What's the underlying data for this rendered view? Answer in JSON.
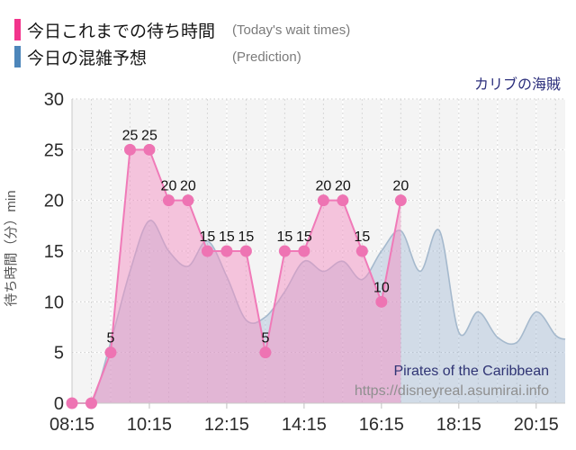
{
  "legend": {
    "items": [
      {
        "label": "今日これまでの待ち時間",
        "sublabel": "(Today's wait times)",
        "color": "#f2348c"
      },
      {
        "label": "今日の混雑予想",
        "sublabel": "(Prediction)",
        "color": "#4d86ba"
      }
    ]
  },
  "footer": {
    "attraction_en": "Pirates of the Caribbean",
    "url": "https://disneyreal.asumirai.info"
  },
  "colors": {
    "navy_title": "#2c2f7c",
    "plot_background": "#f4f4f4",
    "today_line": "#f07ab8",
    "today_fill": "rgba(243,145,196,0.5)",
    "today_marker": "#ee74b3",
    "prediction_line": "#a5b9cd",
    "prediction_fill": "rgba(140,170,205,0.34)",
    "axis_text": "#2b2b2b",
    "point_label": "#111111"
  },
  "chart_data": {
    "type": "area",
    "title": "カリブの海賊",
    "x_axis": {
      "start": "08:15",
      "end": "21:00",
      "tick_labels": [
        "08:15",
        "10:15",
        "12:15",
        "14:15",
        "16:15",
        "18:15",
        "20:15"
      ],
      "minor_step_min": 30,
      "major_step_min": 120
    },
    "y_axis": {
      "title": "待ち時間（分）min",
      "ticks": [
        0,
        5,
        10,
        15,
        20,
        25,
        30
      ],
      "max": 30
    },
    "series": [
      {
        "name": "今日の混雑予想 (Prediction)",
        "smooth": true,
        "markers": false,
        "show_labels": false,
        "line_color": "#a5b9cd",
        "fill_color": "rgba(140,170,205,0.34)",
        "times": [
          "08:15",
          "08:45",
          "09:15",
          "09:45",
          "10:15",
          "10:45",
          "11:15",
          "11:45",
          "12:15",
          "12:45",
          "13:15",
          "13:45",
          "14:15",
          "14:45",
          "15:15",
          "15:45",
          "16:15",
          "16:45",
          "17:15",
          "17:45",
          "18:15",
          "18:45",
          "19:15",
          "19:45",
          "20:15",
          "20:45",
          "21:00"
        ],
        "values": [
          0,
          0,
          6,
          13,
          18,
          15,
          13.5,
          16,
          12.5,
          8.2,
          8.5,
          11,
          14,
          13,
          14,
          12.2,
          15,
          17,
          13,
          17,
          7,
          9,
          6.5,
          6,
          9,
          6.7,
          6.3
        ]
      },
      {
        "name": "今日これまでの待ち時間 (Today's wait times)",
        "smooth": false,
        "markers": true,
        "show_labels": true,
        "line_color": "#f07ab8",
        "fill_color": "rgba(243,145,196,0.5)",
        "marker_color": "#ee74b3",
        "times": [
          "08:15",
          "08:45",
          "09:15",
          "09:45",
          "10:15",
          "10:45",
          "11:15",
          "11:45",
          "12:15",
          "12:45",
          "13:15",
          "13:45",
          "14:15",
          "14:45",
          "15:15",
          "15:45",
          "16:15",
          "16:45"
        ],
        "values": [
          0,
          0,
          5,
          25,
          25,
          20,
          20,
          15,
          15,
          15,
          5,
          15,
          15,
          20,
          20,
          15,
          10,
          20
        ]
      }
    ]
  }
}
